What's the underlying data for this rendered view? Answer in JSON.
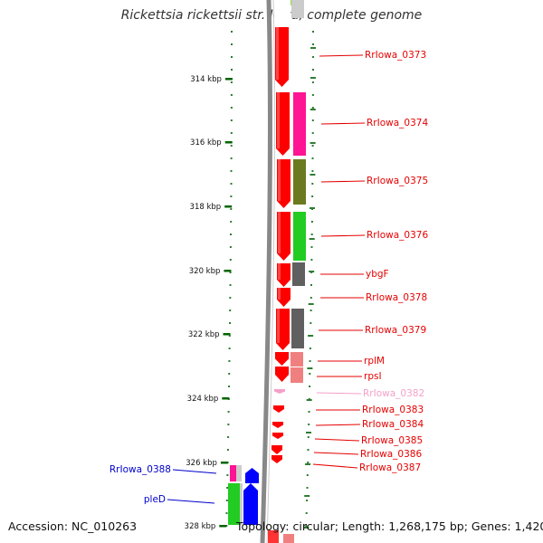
{
  "title": "Rickettsia rickettsii str. Iowa, complete genome",
  "footer": {
    "accession": "Accession: NC_010263",
    "summary": "Topology: circular; Length: 1,268,175 bp; Genes: 1,420"
  },
  "axis": {
    "ticks": [
      "314 kbp",
      "316 kbp",
      "318 kbp",
      "320 kbp",
      "322 kbp",
      "324 kbp",
      "326 kbp",
      "328 kbp"
    ]
  },
  "colors": {
    "backbone": "#888888",
    "forward_cds": "#ff0000",
    "tick_green": "#2e7d32",
    "label_red": "#e60000",
    "label_blue": "#0000cc",
    "label_pink": "#f4a0c8"
  },
  "genes": [
    {
      "label": "RrIowa_0373",
      "side": "right",
      "color": "#ff0000",
      "cog_color": "#cccccc"
    },
    {
      "label": "RrIowa_0374",
      "side": "right",
      "color": "#ff0000",
      "cog_color": "#ff1493"
    },
    {
      "label": "RrIowa_0375",
      "side": "right",
      "color": "#ff0000",
      "cog_color": "#6b7a1f"
    },
    {
      "label": "RrIowa_0376",
      "side": "right",
      "color": "#ff0000",
      "cog_color": "#22cc22"
    },
    {
      "label": "ybgF",
      "side": "right",
      "color": "#ff0000",
      "cog_color": "#606060"
    },
    {
      "label": "RrIowa_0378",
      "side": "right",
      "color": "#ff0000",
      "cog_color": ""
    },
    {
      "label": "RrIowa_0379",
      "side": "right",
      "color": "#ff0000",
      "cog_color": "#606060"
    },
    {
      "label": "rplM",
      "side": "right",
      "color": "#ff0000",
      "cog_color": "#f08080"
    },
    {
      "label": "rpsI",
      "side": "right",
      "color": "#ff0000",
      "cog_color": "#f08080"
    },
    {
      "label": "RrIowa_0382",
      "side": "right",
      "color": "#f4a0c8",
      "cog_color": ""
    },
    {
      "label": "RrIowa_0383",
      "side": "right",
      "color": "#ff0000",
      "cog_color": ""
    },
    {
      "label": "RrIowa_0384",
      "side": "right",
      "color": "#ff0000",
      "cog_color": ""
    },
    {
      "label": "RrIowa_0385",
      "side": "right",
      "color": "#ff0000",
      "cog_color": ""
    },
    {
      "label": "RrIowa_0386",
      "side": "right",
      "color": "#ff0000",
      "cog_color": ""
    },
    {
      "label": "RrIowa_0387",
      "side": "right",
      "color": "#ff0000",
      "cog_color": ""
    },
    {
      "label": "RrIowa_0388",
      "side": "left",
      "color": "#0000ff",
      "cog_color": "#ff1493"
    },
    {
      "label": "pleD",
      "side": "left",
      "color": "#0000ff",
      "cog_color": "#22cc22"
    }
  ]
}
